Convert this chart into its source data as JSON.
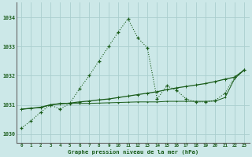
{
  "title": "Graphe pression niveau de la mer (hPa)",
  "background_color": "#cce8e8",
  "grid_color": "#aacece",
  "line_color": "#1a5c1a",
  "x_ticks": [
    0,
    1,
    2,
    3,
    4,
    5,
    6,
    7,
    8,
    9,
    10,
    11,
    12,
    13,
    14,
    15,
    16,
    17,
    18,
    19,
    20,
    21,
    22,
    23
  ],
  "ylim": [
    1029.7,
    1034.5
  ],
  "yticks": [
    1030,
    1031,
    1032,
    1033,
    1034
  ],
  "series1_x": [
    0,
    1,
    2,
    3,
    4,
    5,
    6,
    7,
    8,
    9,
    10,
    11,
    12,
    13,
    14,
    15,
    16,
    17,
    18,
    19,
    20,
    21,
    22,
    23
  ],
  "series1_y": [
    1030.2,
    1030.45,
    1030.75,
    1031.0,
    1030.85,
    1031.05,
    1031.55,
    1032.0,
    1032.5,
    1033.0,
    1033.5,
    1033.95,
    1033.3,
    1032.95,
    1031.2,
    1031.65,
    1031.5,
    1031.2,
    1031.1,
    1031.1,
    1031.15,
    1031.4,
    1031.95,
    1032.2
  ],
  "series2_x": [
    0,
    1,
    2,
    3,
    4,
    5,
    6,
    7,
    8,
    9,
    10,
    11,
    12,
    13,
    14,
    15,
    16,
    17,
    18,
    19,
    20,
    21,
    22,
    23
  ],
  "series2_y": [
    1030.85,
    1030.88,
    1030.92,
    1031.0,
    1031.03,
    1031.06,
    1031.1,
    1031.13,
    1031.17,
    1031.2,
    1031.25,
    1031.3,
    1031.35,
    1031.4,
    1031.45,
    1031.52,
    1031.58,
    1031.63,
    1031.68,
    1031.73,
    1031.8,
    1031.88,
    1031.95,
    1032.2
  ],
  "series3_x": [
    0,
    1,
    2,
    3,
    4,
    5,
    6,
    7,
    8,
    9,
    10,
    11,
    12,
    13,
    14,
    15,
    16,
    17,
    18,
    19,
    20,
    21,
    22,
    23
  ],
  "series3_y": [
    1030.85,
    1030.88,
    1030.9,
    1031.0,
    1031.05,
    1031.05,
    1031.05,
    1031.05,
    1031.06,
    1031.07,
    1031.08,
    1031.09,
    1031.1,
    1031.1,
    1031.1,
    1031.12,
    1031.12,
    1031.12,
    1031.12,
    1031.12,
    1031.13,
    1031.25,
    1031.9,
    1032.2
  ],
  "figsize": [
    3.2,
    2.0
  ],
  "dpi": 100
}
